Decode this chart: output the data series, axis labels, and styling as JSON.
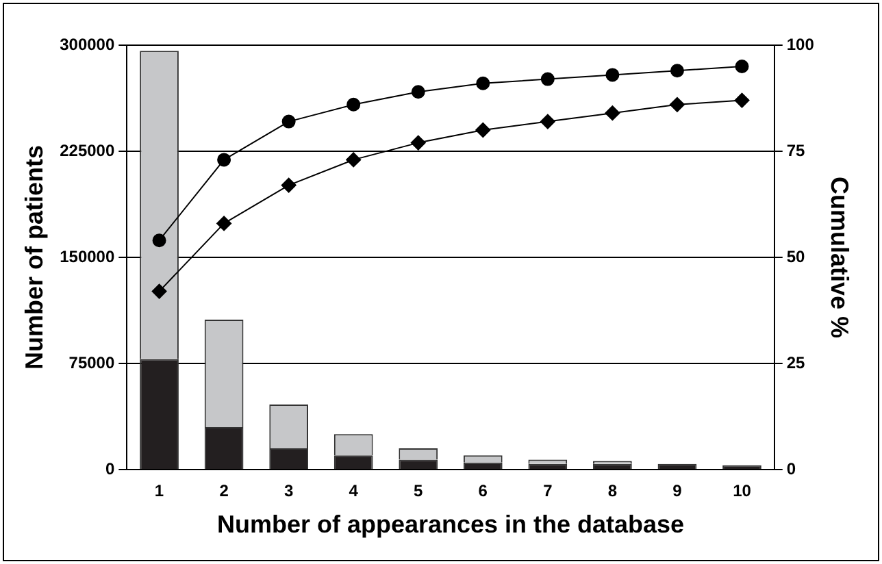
{
  "chart_data": {
    "type": "bar",
    "xlabel": "Number of appearances in the database",
    "ylabel": "Number of patients",
    "y2label": "Cumulative %",
    "categories": [
      "1",
      "2",
      "3",
      "4",
      "5",
      "6",
      "7",
      "8",
      "9",
      "10"
    ],
    "stacked": true,
    "grid": "y",
    "legend": false,
    "ylim": [
      0,
      300000
    ],
    "yticks": [
      0,
      75000,
      150000,
      225000,
      300000
    ],
    "y2lim": [
      0,
      100
    ],
    "y2ticks": [
      0,
      25,
      50,
      75,
      100
    ],
    "series": [
      {
        "color": "#231f20",
        "values": [
          78000,
          30000,
          15000,
          10000,
          7000,
          5000,
          4000,
          4000,
          4000,
          3000
        ]
      },
      {
        "color": "#c6c7c9",
        "values": [
          218000,
          76000,
          31000,
          15000,
          8000,
          5000,
          3000,
          2000,
          null,
          null
        ]
      },
      {
        "type": "line",
        "axis": "y2",
        "marker": "circle",
        "color": "#000000",
        "values": [
          54,
          73,
          82,
          86,
          89,
          91,
          92,
          93,
          94,
          95
        ]
      },
      {
        "type": "line",
        "axis": "y2",
        "marker": "diamond",
        "color": "#000000",
        "values": [
          42,
          58,
          67,
          73,
          77,
          80,
          82,
          84,
          86,
          87
        ]
      }
    ]
  }
}
